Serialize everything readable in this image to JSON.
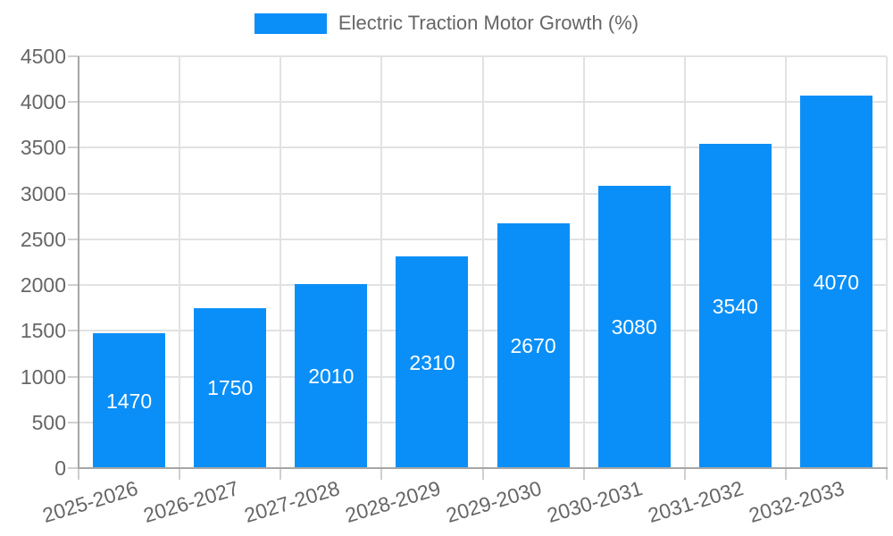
{
  "chart": {
    "legend": {
      "label": "Electric Traction Motor Growth (%)"
    },
    "colors": {
      "bar": "#0a8ff8",
      "grid": "#e2e2e2",
      "axis": "#a6a6a6",
      "tick": "#cfcfcf",
      "text": "#666666",
      "value_label": "#ffffff",
      "background": "#ffffff"
    }
  },
  "chart_data": {
    "type": "bar",
    "categories": [
      "2025-2026",
      "2026-2027",
      "2027-2028",
      "2028-2029",
      "2029-2030",
      "2030-2031",
      "2031-2032",
      "2032-2033"
    ],
    "values": [
      1470,
      1750,
      2010,
      2310,
      2670,
      3080,
      3540,
      4070
    ],
    "title": "Electric Traction Motor Growth (%)",
    "xlabel": "",
    "ylabel": "",
    "ylim": [
      0,
      4500
    ],
    "ytick_step": 500,
    "ytick_labels": [
      "0",
      "500",
      "1000",
      "1500",
      "2000",
      "2500",
      "3000",
      "3500",
      "4000",
      "4500"
    ],
    "legend_position": "top-center",
    "grid": true,
    "value_labels": "inside-center-white"
  }
}
